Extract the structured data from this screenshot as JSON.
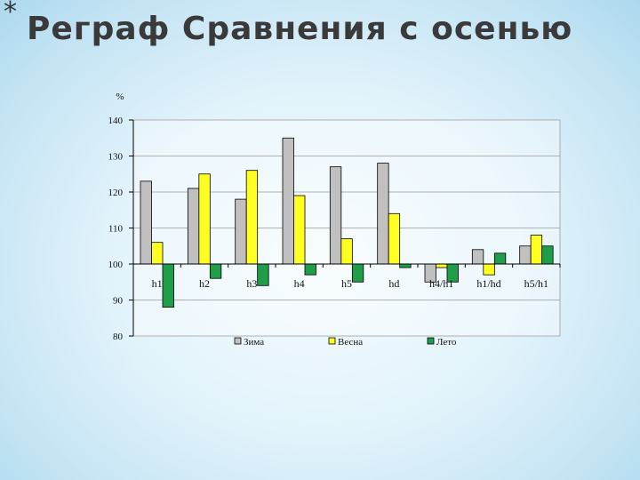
{
  "slide": {
    "title_marker": "*",
    "title": "Реграф Сравнения с осенью"
  },
  "chart_data": {
    "type": "bar",
    "title": "",
    "xlabel": "",
    "ylabel": "%",
    "ylim": [
      80,
      140
    ],
    "yticks": [
      80,
      90,
      100,
      110,
      120,
      130,
      140
    ],
    "baseline": 100,
    "grid": true,
    "legend_position": "bottom",
    "categories": [
      "h1",
      "h2",
      "h3",
      "h4",
      "h5",
      "hd",
      "h4/h1",
      "h1/hd",
      "h5/h1"
    ],
    "series": [
      {
        "name": "Зима",
        "color": "#c0c0c0",
        "values": [
          123,
          121,
          118,
          135,
          127,
          128,
          95,
          104,
          105
        ]
      },
      {
        "name": "Весна",
        "color": "#ffff22",
        "values": [
          106,
          125,
          126,
          119,
          107,
          114,
          99,
          97,
          108
        ]
      },
      {
        "name": "Лето",
        "color": "#1e9e48",
        "values": [
          88,
          96,
          94,
          97,
          95,
          99,
          95,
          103,
          105
        ]
      }
    ]
  }
}
